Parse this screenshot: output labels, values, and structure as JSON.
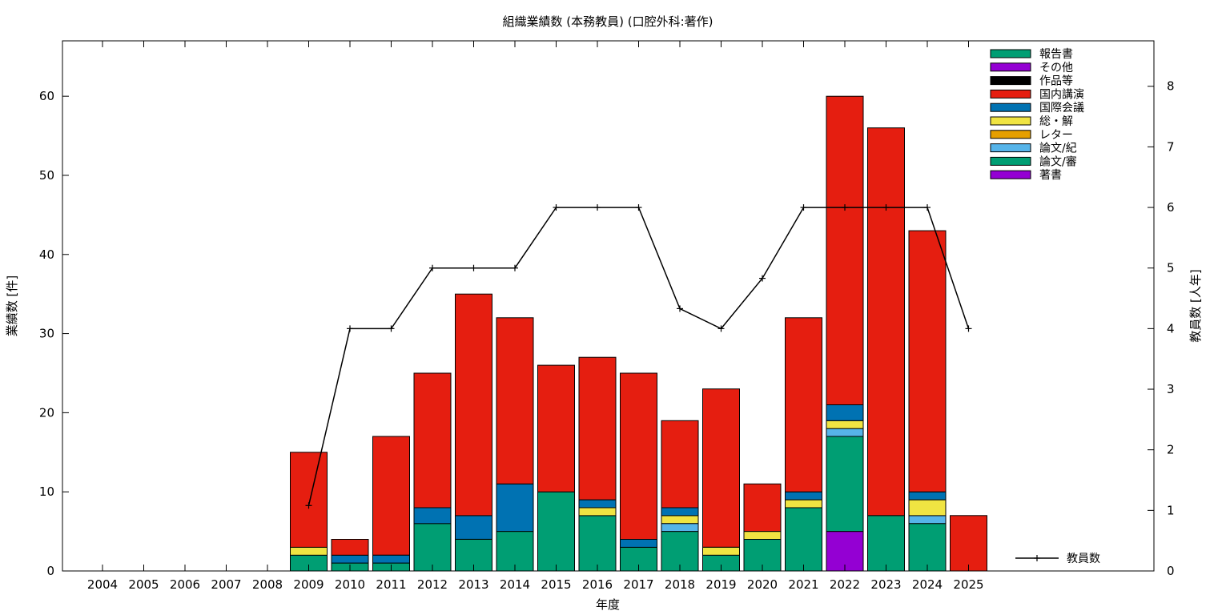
{
  "chart_data": {
    "type": "bar",
    "title": "組織業績数 (本務教員) (口腔外科:著作)",
    "xlabel": "年度",
    "ylabel": "業績数 [件]",
    "y2label": "教員数 [人年]",
    "categories": [
      "2004",
      "2005",
      "2006",
      "2007",
      "2008",
      "2009",
      "2010",
      "2011",
      "2012",
      "2013",
      "2014",
      "2015",
      "2016",
      "2017",
      "2018",
      "2019",
      "2020",
      "2021",
      "2022",
      "2023",
      "2024",
      "2025"
    ],
    "ylim": [
      0,
      67
    ],
    "y2lim": [
      0,
      8.75
    ],
    "yticks": [
      0,
      10,
      20,
      30,
      40,
      50,
      60
    ],
    "y2ticks": [
      0,
      1,
      2,
      3,
      4,
      5,
      6,
      7,
      8
    ],
    "stacked": true,
    "grid": false,
    "legend_position": "top-right",
    "series": [
      {
        "name": "著書",
        "color": "#9400d3",
        "values": [
          0,
          0,
          0,
          0,
          0,
          0,
          0,
          0,
          0,
          0,
          0,
          0,
          0,
          0,
          0,
          0,
          0,
          0,
          5,
          0,
          0,
          0
        ]
      },
      {
        "name": "論文/審",
        "color": "#009e73",
        "values": [
          0,
          0,
          0,
          0,
          0,
          2,
          1,
          1,
          6,
          4,
          5,
          10,
          7,
          3,
          5,
          2,
          4,
          8,
          12,
          7,
          6,
          0
        ]
      },
      {
        "name": "論文/紀",
        "color": "#56b4e9",
        "values": [
          0,
          0,
          0,
          0,
          0,
          0,
          0,
          0,
          0,
          0,
          0,
          0,
          0,
          0,
          1,
          0,
          0,
          0,
          1,
          0,
          1,
          0
        ]
      },
      {
        "name": "レター",
        "color": "#e69f00",
        "values": [
          0,
          0,
          0,
          0,
          0,
          0,
          0,
          0,
          0,
          0,
          0,
          0,
          0,
          0,
          0,
          0,
          0,
          0,
          0,
          0,
          0,
          0
        ]
      },
      {
        "name": "総・解",
        "color": "#f0e442",
        "values": [
          0,
          0,
          0,
          0,
          0,
          1,
          0,
          0,
          0,
          0,
          0,
          0,
          1,
          0,
          1,
          1,
          1,
          1,
          1,
          0,
          2,
          0
        ]
      },
      {
        "name": "国際会議",
        "color": "#0072b2",
        "values": [
          0,
          0,
          0,
          0,
          0,
          0,
          1,
          1,
          2,
          3,
          6,
          0,
          1,
          1,
          1,
          0,
          0,
          1,
          2,
          0,
          1,
          0
        ]
      },
      {
        "name": "国内講演",
        "color": "#e51e10",
        "values": [
          0,
          0,
          0,
          0,
          0,
          12,
          2,
          15,
          17,
          28,
          21,
          16,
          18,
          21,
          11,
          20,
          6,
          22,
          39,
          49,
          33,
          7
        ]
      },
      {
        "name": "作品等",
        "color": "#000000",
        "values": [
          0,
          0,
          0,
          0,
          0,
          0,
          0,
          0,
          0,
          0,
          0,
          0,
          0,
          0,
          0,
          0,
          0,
          0,
          0,
          0,
          0,
          0
        ]
      },
      {
        "name": "その他",
        "color": "#9400d3",
        "values": [
          0,
          0,
          0,
          0,
          0,
          0,
          0,
          0,
          0,
          0,
          0,
          0,
          0,
          0,
          0,
          0,
          0,
          0,
          0,
          0,
          0,
          0
        ]
      },
      {
        "name": "報告書",
        "color": "#009e73",
        "values": [
          0,
          0,
          0,
          0,
          0,
          0,
          0,
          0,
          0,
          0,
          0,
          0,
          0,
          0,
          0,
          0,
          0,
          0,
          0,
          0,
          0,
          0
        ]
      }
    ],
    "legend_order": [
      "報告書",
      "その他",
      "作品等",
      "国内講演",
      "国際会議",
      "総・解",
      "レター",
      "論文/紀",
      "論文/審",
      "著書"
    ],
    "line_series": {
      "name": "教員数",
      "color": "#000000",
      "axis": "y2",
      "x": [
        "2009",
        "2010",
        "2011",
        "2012",
        "2013",
        "2014",
        "2015",
        "2016",
        "2017",
        "2018",
        "2019",
        "2020",
        "2021",
        "2022",
        "2023",
        "2024",
        "2025"
      ],
      "values": [
        1.08,
        4.0,
        4.0,
        5.0,
        5.0,
        5.0,
        6.0,
        6.0,
        6.0,
        4.33,
        4.0,
        4.83,
        6.0,
        6.0,
        6.0,
        6.0,
        4.0
      ]
    }
  }
}
